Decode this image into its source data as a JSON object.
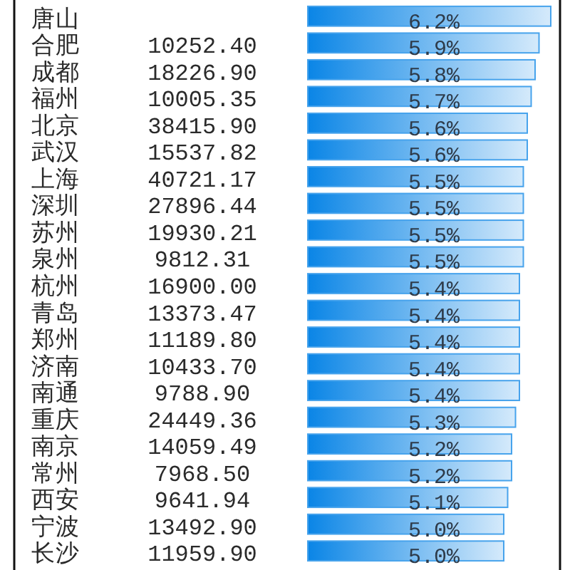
{
  "chart_data": {
    "type": "bar",
    "orientation": "horizontal",
    "categories": [
      "唐山",
      "合肥",
      "成都",
      "福州",
      "北京",
      "武汉",
      "上海",
      "深圳",
      "苏州",
      "泉州",
      "杭州",
      "青岛",
      "郑州",
      "济南",
      "南通",
      "重庆",
      "南京",
      "常州",
      "西安",
      "宁波",
      "长沙"
    ],
    "values": [
      6.2,
      5.9,
      5.8,
      5.7,
      5.6,
      5.6,
      5.5,
      5.5,
      5.5,
      5.5,
      5.4,
      5.4,
      5.4,
      5.4,
      5.4,
      5.3,
      5.2,
      5.2,
      5.1,
      5.0,
      5.0
    ],
    "value_labels": [
      "6.2%",
      "5.9%",
      "5.8%",
      "5.7%",
      "5.6%",
      "5.6%",
      "5.5%",
      "5.5%",
      "5.5%",
      "5.5%",
      "5.4%",
      "5.4%",
      "5.4%",
      "5.4%",
      "5.4%",
      "5.3%",
      "5.2%",
      "5.2%",
      "5.1%",
      "5.0%",
      "5.0%"
    ],
    "annotations": [
      null,
      "10252.40",
      "18226.90",
      "10005.35",
      "38415.90",
      "15537.82",
      "40721.17",
      "27896.44",
      "19930.21",
      "9812.31",
      "16900.00",
      "13373.47",
      "11189.80",
      "10433.70",
      "9788.90",
      "24449.36",
      "14059.49",
      "7968.50",
      "9641.94",
      "13492.90",
      "11959.90"
    ],
    "color": "#47a3ec",
    "xlim": [
      0,
      6.4
    ]
  }
}
